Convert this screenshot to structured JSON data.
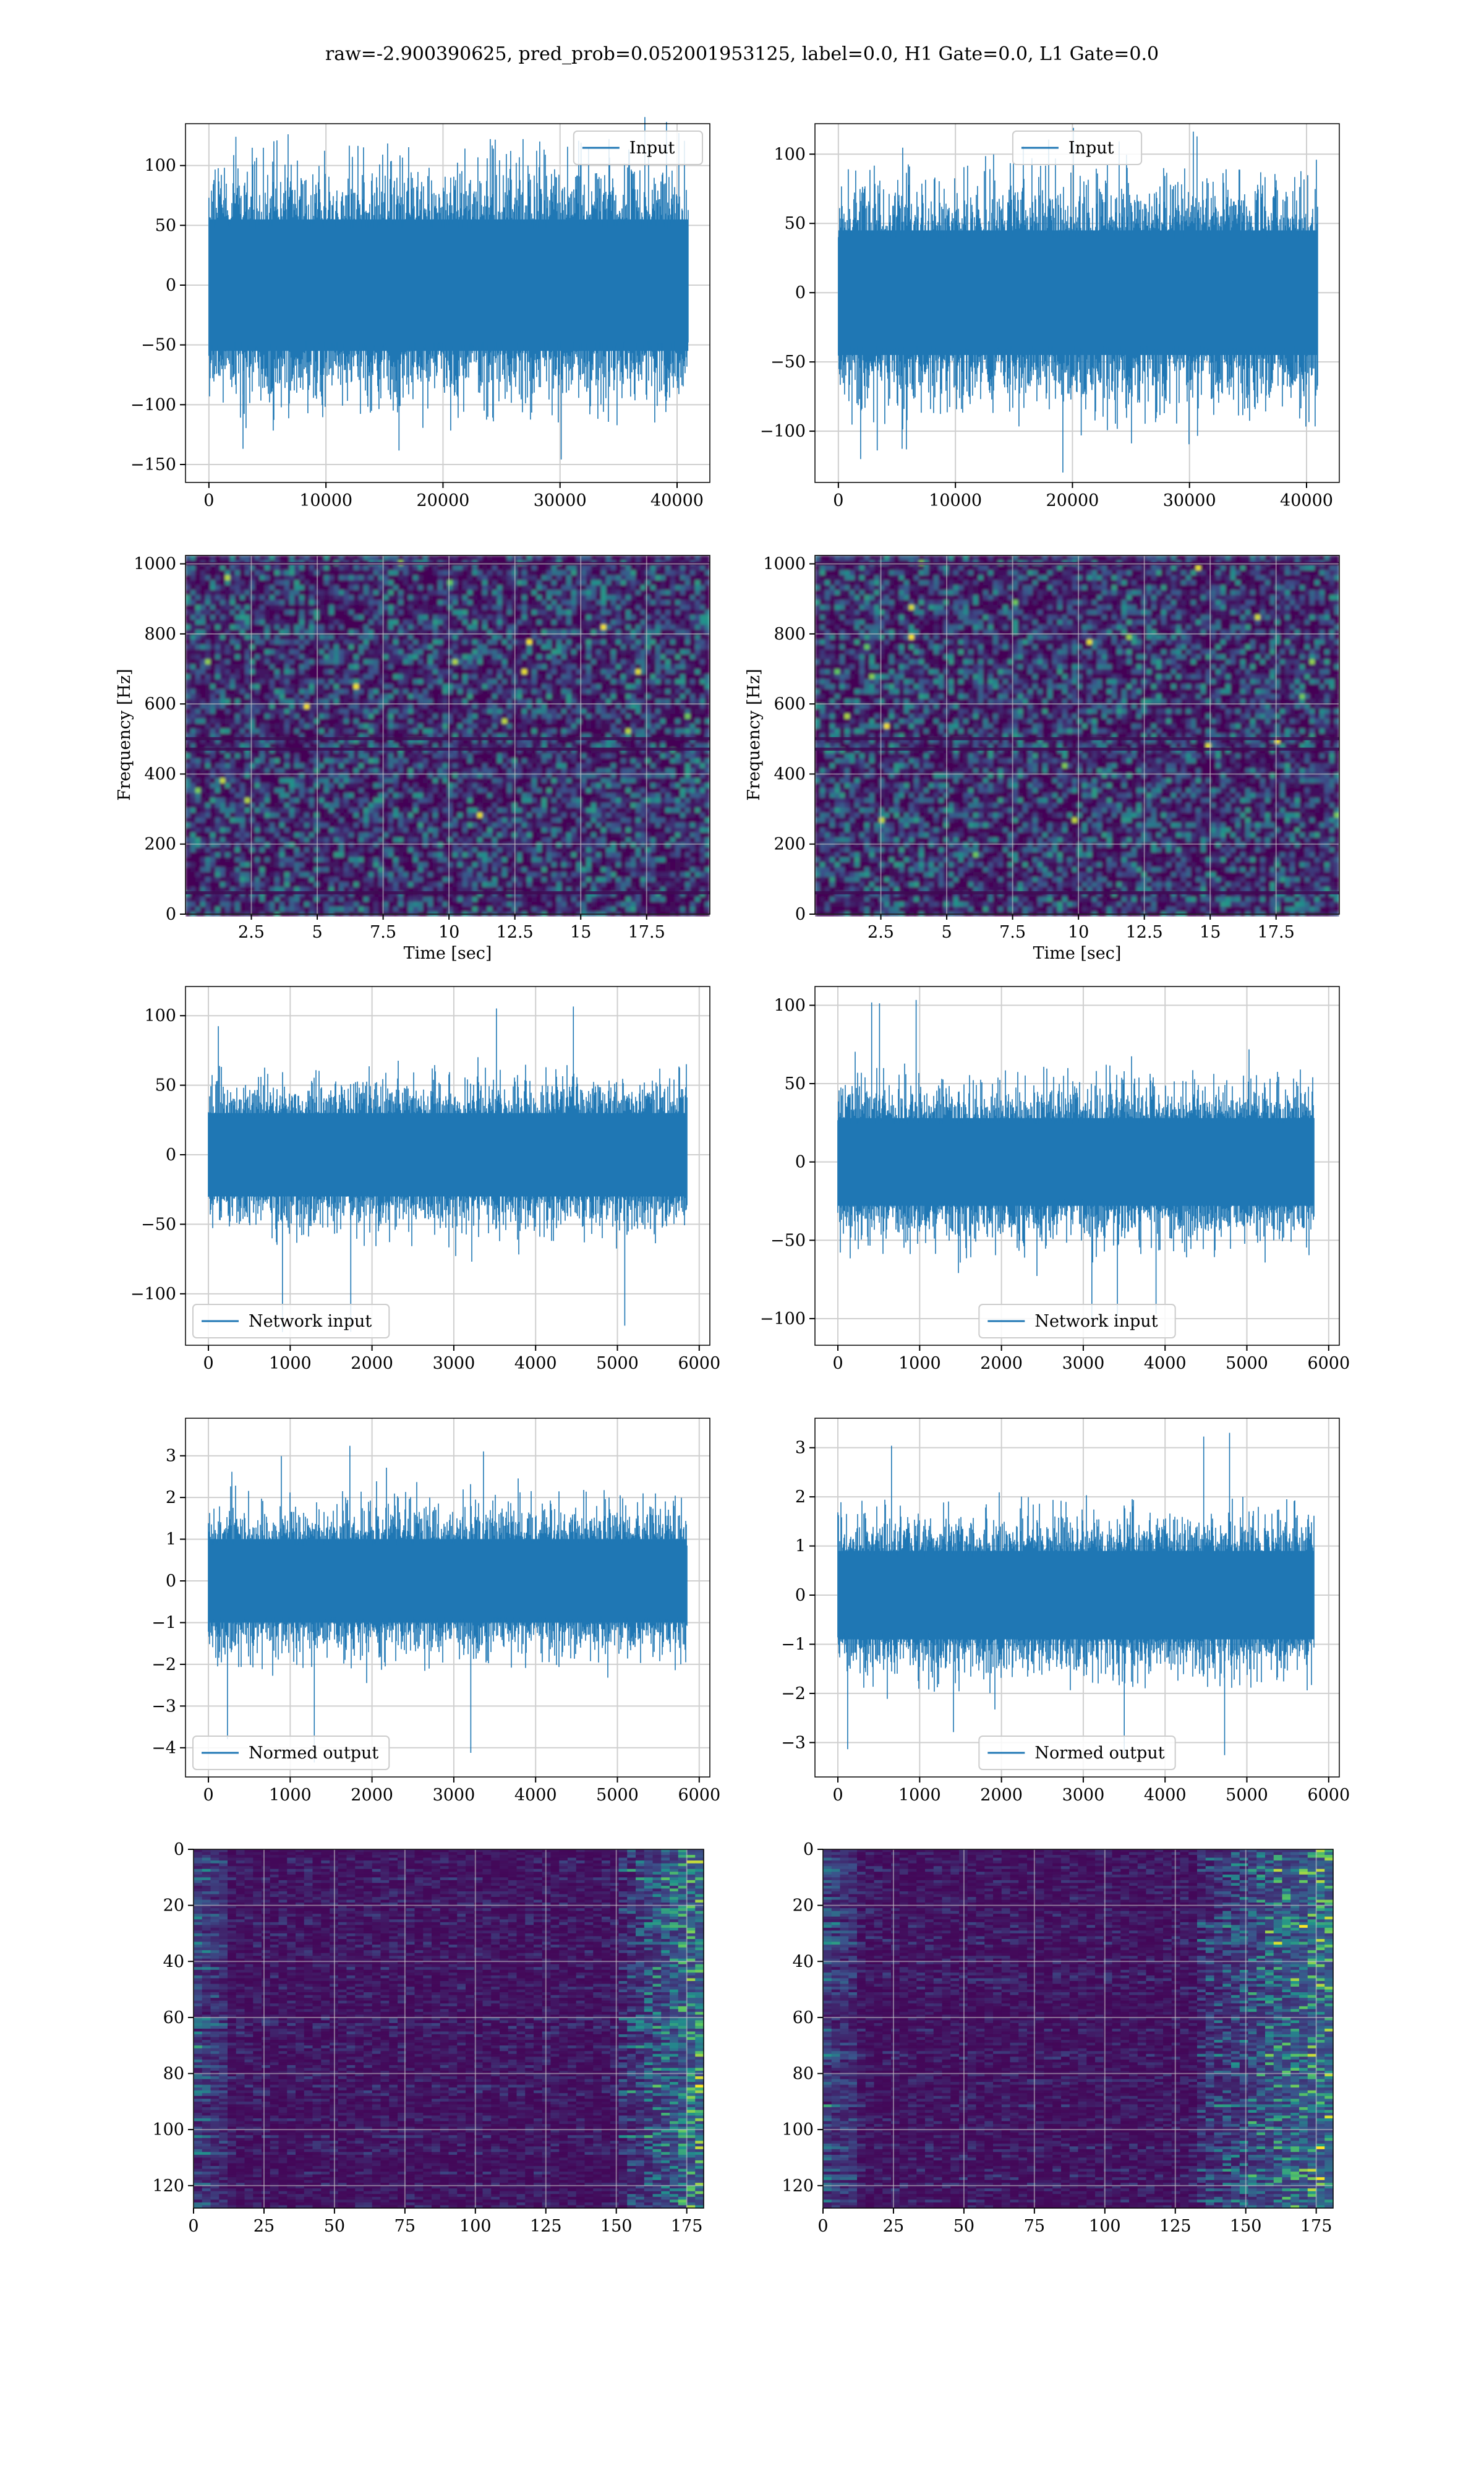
{
  "suptitle": "raw=-2.900390625, pred_prob=0.052001953125, label=0.0, H1 Gate=0.0, L1 Gate=0.0",
  "colors": {
    "line": "#1f77b4",
    "grid": "#b0b0b0",
    "viridis_low": "#440154",
    "viridis_high": "#fde725"
  },
  "chart_data": [
    {
      "id": "input-h1",
      "type": "line",
      "legend": "Input",
      "legend_loc": "upper right",
      "xlim": [
        -2000,
        42800
      ],
      "ylim": [
        -165,
        135
      ],
      "xticks": [
        0,
        10000,
        20000,
        30000,
        40000
      ],
      "yticks": [
        -150,
        -100,
        -50,
        0,
        50,
        100
      ],
      "x_range": [
        0,
        40960
      ],
      "core_amplitude": 55,
      "spike_max": 130,
      "spike_min": -150,
      "grid": true
    },
    {
      "id": "input-l1",
      "type": "line",
      "legend": "Input",
      "legend_loc": "upper center",
      "xlim": [
        -2000,
        42800
      ],
      "ylim": [
        -137,
        122
      ],
      "xticks": [
        0,
        10000,
        20000,
        30000,
        40000
      ],
      "yticks": [
        -100,
        -50,
        0,
        50,
        100
      ],
      "x_range": [
        0,
        40960
      ],
      "core_amplitude": 45,
      "spike_max": 122,
      "spike_min": -120,
      "grid": true
    },
    {
      "id": "spec-h1",
      "type": "heatmap",
      "xlabel": "Time [sec]",
      "ylabel": "Frequency [Hz]",
      "xlim": [
        0,
        19.9
      ],
      "ylim": [
        0,
        1024
      ],
      "xticks": [
        2.5,
        5.0,
        7.5,
        10.0,
        12.5,
        15.0,
        17.5
      ],
      "yticks": [
        0,
        200,
        400,
        600,
        800,
        1000
      ],
      "colormap": "viridis",
      "grid": true
    },
    {
      "id": "spec-l1",
      "type": "heatmap",
      "xlabel": "Time [sec]",
      "ylabel": "Frequency [Hz]",
      "xlim": [
        0,
        19.9
      ],
      "ylim": [
        0,
        1024
      ],
      "xticks": [
        2.5,
        5.0,
        7.5,
        10.0,
        12.5,
        15.0,
        17.5
      ],
      "yticks": [
        0,
        200,
        400,
        600,
        800,
        1000
      ],
      "colormap": "viridis",
      "grid": true
    },
    {
      "id": "net-h1",
      "type": "line",
      "legend": "Network input",
      "legend_loc": "lower left",
      "xlim": [
        -280,
        6130
      ],
      "ylim": [
        -137,
        121
      ],
      "xticks": [
        0,
        1000,
        2000,
        3000,
        4000,
        5000,
        6000
      ],
      "yticks": [
        -100,
        -50,
        0,
        50,
        100
      ],
      "x_range": [
        0,
        5850
      ],
      "core_amplitude": 30,
      "spike_max": 108,
      "spike_min": -135,
      "grid": true
    },
    {
      "id": "net-l1",
      "type": "line",
      "legend": "Network input",
      "legend_loc": "lower center",
      "xlim": [
        -280,
        6130
      ],
      "ylim": [
        -117,
        112
      ],
      "xticks": [
        0,
        1000,
        2000,
        3000,
        4000,
        5000,
        6000
      ],
      "yticks": [
        -100,
        -50,
        0,
        50,
        100
      ],
      "x_range": [
        0,
        5820
      ],
      "core_amplitude": 28,
      "spike_max": 105,
      "spike_min": -107,
      "grid": true
    },
    {
      "id": "norm-h1",
      "type": "line",
      "legend": "Normed output",
      "legend_loc": "lower left",
      "xlim": [
        -280,
        6130
      ],
      "ylim": [
        -4.7,
        3.9
      ],
      "xticks": [
        0,
        1000,
        2000,
        3000,
        4000,
        5000,
        6000
      ],
      "yticks": [
        -4,
        -3,
        -2,
        -1,
        0,
        1,
        2,
        3
      ],
      "x_range": [
        0,
        5850
      ],
      "core_amplitude": 1.0,
      "spike_max": 3.5,
      "spike_min": -4.4,
      "grid": true
    },
    {
      "id": "norm-l1",
      "type": "line",
      "legend": "Normed output",
      "legend_loc": "lower center",
      "xlim": [
        -280,
        6130
      ],
      "ylim": [
        -3.7,
        3.6
      ],
      "xticks": [
        0,
        1000,
        2000,
        3000,
        4000,
        5000,
        6000
      ],
      "yticks": [
        -3,
        -2,
        -1,
        0,
        1,
        2,
        3
      ],
      "x_range": [
        0,
        5820
      ],
      "core_amplitude": 0.9,
      "spike_max": 3.4,
      "spike_min": -3.4,
      "grid": true
    },
    {
      "id": "feat-h1",
      "type": "heatmap",
      "xlim": [
        0,
        181
      ],
      "ylim": [
        128,
        0
      ],
      "xticks": [
        0,
        25,
        50,
        75,
        100,
        125,
        150,
        175
      ],
      "yticks": [
        0,
        20,
        40,
        60,
        80,
        100,
        120
      ],
      "colormap": "viridis",
      "grid": true,
      "active_columns": [
        150,
        181
      ]
    },
    {
      "id": "feat-l1",
      "type": "heatmap",
      "xlim": [
        0,
        181
      ],
      "ylim": [
        128,
        0
      ],
      "xticks": [
        0,
        25,
        50,
        75,
        100,
        125,
        150,
        175
      ],
      "yticks": [
        0,
        20,
        40,
        60,
        80,
        100,
        120
      ],
      "colormap": "viridis",
      "grid": true,
      "active_columns": [
        130,
        181
      ]
    }
  ]
}
